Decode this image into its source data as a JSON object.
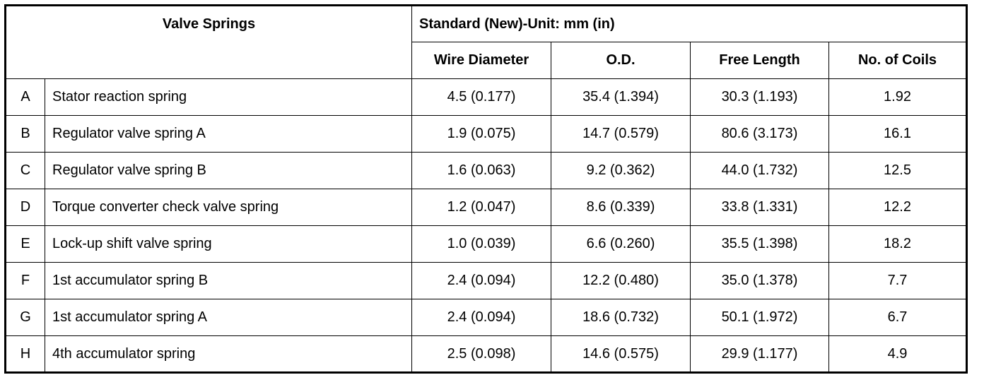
{
  "table": {
    "header": {
      "title": "Valve Springs",
      "group": "Standard (New)-Unit: mm (in)",
      "columns": [
        "Wire Diameter",
        "O.D.",
        "Free Length",
        "No. of Coils"
      ]
    },
    "rows": [
      [
        "A",
        "Stator reaction spring",
        "4.5 (0.177)",
        "35.4 (1.394)",
        "30.3 (1.193)",
        "1.92"
      ],
      [
        "B",
        "Regulator valve spring A",
        "1.9 (0.075)",
        "14.7 (0.579)",
        "80.6 (3.173)",
        "16.1"
      ],
      [
        "C",
        "Regulator valve spring B",
        "1.6 (0.063)",
        "9.2 (0.362)",
        "44.0 (1.732)",
        "12.5"
      ],
      [
        "D",
        "Torque converter check valve spring",
        "1.2 (0.047)",
        "8.6 (0.339)",
        "33.8 (1.331)",
        "12.2"
      ],
      [
        "E",
        "Lock-up shift valve spring",
        "1.0 (0.039)",
        "6.6 (0.260)",
        "35.5 (1.398)",
        "18.2"
      ],
      [
        "F",
        "1st accumulator spring B",
        "2.4 (0.094)",
        "12.2 (0.480)",
        "35.0 (1.378)",
        "7.7"
      ],
      [
        "G",
        "1st accumulator spring A",
        "2.4 (0.094)",
        "18.6 (0.732)",
        "50.1 (1.972)",
        "6.7"
      ],
      [
        "H",
        "4th accumulator spring",
        "2.5 (0.098)",
        "14.6 (0.575)",
        "29.9 (1.177)",
        "4.9"
      ]
    ]
  }
}
